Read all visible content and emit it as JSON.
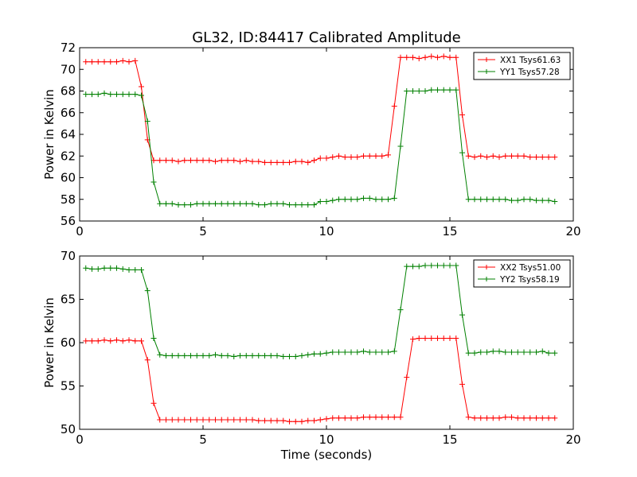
{
  "figure_title": "GL32, ID:84417 Calibrated Amplitude",
  "chart_data": [
    {
      "type": "line",
      "title": "GL32, ID:84417 Calibrated Amplitude",
      "xlabel": "",
      "ylabel": "Power in Kelvin",
      "xlim": [
        0,
        20
      ],
      "ylim": [
        56,
        72
      ],
      "xticks": [
        "0",
        "5",
        "10",
        "15",
        "20"
      ],
      "yticks": [
        "56",
        "58",
        "60",
        "62",
        "64",
        "66",
        "68",
        "70",
        "72"
      ],
      "grid": false,
      "legend_position": "top-right",
      "x": [
        0.25,
        0.5,
        0.75,
        1.0,
        1.25,
        1.5,
        1.75,
        2.0,
        2.25,
        2.5,
        2.75,
        3.0,
        3.25,
        3.5,
        3.75,
        4.0,
        4.25,
        4.5,
        4.75,
        5.0,
        5.25,
        5.5,
        5.75,
        6.0,
        6.25,
        6.5,
        6.75,
        7.0,
        7.25,
        7.5,
        7.75,
        8.0,
        8.25,
        8.5,
        8.75,
        9.0,
        9.25,
        9.5,
        9.75,
        10.0,
        10.25,
        10.5,
        10.75,
        11.0,
        11.25,
        11.5,
        11.75,
        12.0,
        12.25,
        12.5,
        12.75,
        13.0,
        13.25,
        13.5,
        13.75,
        14.0,
        14.25,
        14.5,
        14.75,
        15.0,
        15.25,
        15.5,
        15.75,
        16.0,
        16.25,
        16.5,
        16.75,
        17.0,
        17.25,
        17.5,
        17.75,
        18.0,
        18.25,
        18.5,
        18.75,
        19.0,
        19.25
      ],
      "series": [
        {
          "name": "XX1 Tsys61.63",
          "color": "#ff0000",
          "values": [
            70.7,
            70.7,
            70.7,
            70.7,
            70.7,
            70.7,
            70.8,
            70.7,
            70.8,
            68.4,
            63.5,
            61.6,
            61.6,
            61.6,
            61.6,
            61.5,
            61.6,
            61.6,
            61.6,
            61.6,
            61.6,
            61.5,
            61.6,
            61.6,
            61.6,
            61.5,
            61.6,
            61.5,
            61.5,
            61.4,
            61.4,
            61.4,
            61.4,
            61.4,
            61.5,
            61.5,
            61.4,
            61.6,
            61.8,
            61.8,
            61.9,
            62.0,
            61.9,
            61.9,
            61.9,
            62.0,
            62.0,
            62.0,
            62.0,
            62.1,
            66.6,
            71.1,
            71.1,
            71.1,
            71.0,
            71.1,
            71.2,
            71.1,
            71.2,
            71.1,
            71.1,
            65.8,
            62.0,
            61.9,
            62.0,
            61.9,
            62.0,
            61.9,
            62.0,
            62.0,
            62.0,
            62.0,
            61.9,
            61.9,
            61.9,
            61.9,
            61.9
          ]
        },
        {
          "name": "YY1 Tsys57.28",
          "color": "#008000",
          "values": [
            67.7,
            67.7,
            67.7,
            67.8,
            67.7,
            67.7,
            67.7,
            67.7,
            67.7,
            67.6,
            65.2,
            59.6,
            57.6,
            57.6,
            57.6,
            57.5,
            57.5,
            57.5,
            57.6,
            57.6,
            57.6,
            57.6,
            57.6,
            57.6,
            57.6,
            57.6,
            57.6,
            57.6,
            57.5,
            57.5,
            57.6,
            57.6,
            57.6,
            57.5,
            57.5,
            57.5,
            57.5,
            57.5,
            57.8,
            57.8,
            57.9,
            58.0,
            58.0,
            58.0,
            58.0,
            58.1,
            58.1,
            58.0,
            58.0,
            58.0,
            58.1,
            62.9,
            68.0,
            68.0,
            68.0,
            68.0,
            68.1,
            68.1,
            68.1,
            68.1,
            68.1,
            62.3,
            58.0,
            58.0,
            58.0,
            58.0,
            58.0,
            58.0,
            58.0,
            57.9,
            57.9,
            58.0,
            58.0,
            57.9,
            57.9,
            57.9,
            57.8
          ]
        }
      ]
    },
    {
      "type": "line",
      "title": "",
      "xlabel": "Time (seconds)",
      "ylabel": "Power in Kelvin",
      "xlim": [
        0,
        20
      ],
      "ylim": [
        50,
        70
      ],
      "xticks": [
        "0",
        "5",
        "10",
        "15",
        "20"
      ],
      "yticks": [
        "50",
        "55",
        "60",
        "65",
        "70"
      ],
      "grid": false,
      "legend_position": "top-right",
      "x": [
        0.25,
        0.5,
        0.75,
        1.0,
        1.25,
        1.5,
        1.75,
        2.0,
        2.25,
        2.5,
        2.75,
        3.0,
        3.25,
        3.5,
        3.75,
        4.0,
        4.25,
        4.5,
        4.75,
        5.0,
        5.25,
        5.5,
        5.75,
        6.0,
        6.25,
        6.5,
        6.75,
        7.0,
        7.25,
        7.5,
        7.75,
        8.0,
        8.25,
        8.5,
        8.75,
        9.0,
        9.25,
        9.5,
        9.75,
        10.0,
        10.25,
        10.5,
        10.75,
        11.0,
        11.25,
        11.5,
        11.75,
        12.0,
        12.25,
        12.5,
        12.75,
        13.0,
        13.25,
        13.5,
        13.75,
        14.0,
        14.25,
        14.5,
        14.75,
        15.0,
        15.25,
        15.5,
        15.75,
        16.0,
        16.25,
        16.5,
        16.75,
        17.0,
        17.25,
        17.5,
        17.75,
        18.0,
        18.25,
        18.5,
        18.75,
        19.0,
        19.25
      ],
      "series": [
        {
          "name": "XX2 Tsys51.00",
          "color": "#ff0000",
          "values": [
            60.2,
            60.2,
            60.2,
            60.3,
            60.2,
            60.3,
            60.2,
            60.3,
            60.2,
            60.2,
            58.0,
            53.0,
            51.1,
            51.1,
            51.1,
            51.1,
            51.1,
            51.1,
            51.1,
            51.1,
            51.1,
            51.1,
            51.1,
            51.1,
            51.1,
            51.1,
            51.1,
            51.1,
            51.0,
            51.0,
            51.0,
            51.0,
            51.0,
            50.9,
            50.9,
            50.9,
            51.0,
            51.0,
            51.1,
            51.2,
            51.3,
            51.3,
            51.3,
            51.3,
            51.3,
            51.4,
            51.4,
            51.4,
            51.4,
            51.4,
            51.4,
            51.4,
            56.0,
            60.4,
            60.5,
            60.5,
            60.5,
            60.5,
            60.5,
            60.5,
            60.5,
            55.2,
            51.4,
            51.3,
            51.3,
            51.3,
            51.3,
            51.3,
            51.4,
            51.4,
            51.3,
            51.3,
            51.3,
            51.3,
            51.3,
            51.3,
            51.3
          ]
        },
        {
          "name": "YY2 Tsys58.19",
          "color": "#008000",
          "values": [
            68.6,
            68.5,
            68.5,
            68.6,
            68.6,
            68.6,
            68.5,
            68.4,
            68.4,
            68.4,
            66.0,
            60.5,
            58.6,
            58.5,
            58.5,
            58.5,
            58.5,
            58.5,
            58.5,
            58.5,
            58.5,
            58.6,
            58.5,
            58.5,
            58.4,
            58.5,
            58.5,
            58.5,
            58.5,
            58.5,
            58.5,
            58.5,
            58.4,
            58.4,
            58.4,
            58.5,
            58.6,
            58.7,
            58.7,
            58.8,
            58.9,
            58.9,
            58.9,
            58.9,
            58.9,
            59.0,
            58.9,
            58.9,
            58.9,
            58.9,
            59.0,
            63.8,
            68.8,
            68.8,
            68.8,
            68.9,
            68.9,
            68.9,
            68.9,
            68.9,
            68.9,
            63.2,
            58.8,
            58.8,
            58.9,
            58.9,
            59.0,
            59.0,
            58.9,
            58.9,
            58.9,
            58.9,
            58.9,
            58.9,
            59.0,
            58.8,
            58.8
          ]
        }
      ]
    }
  ]
}
